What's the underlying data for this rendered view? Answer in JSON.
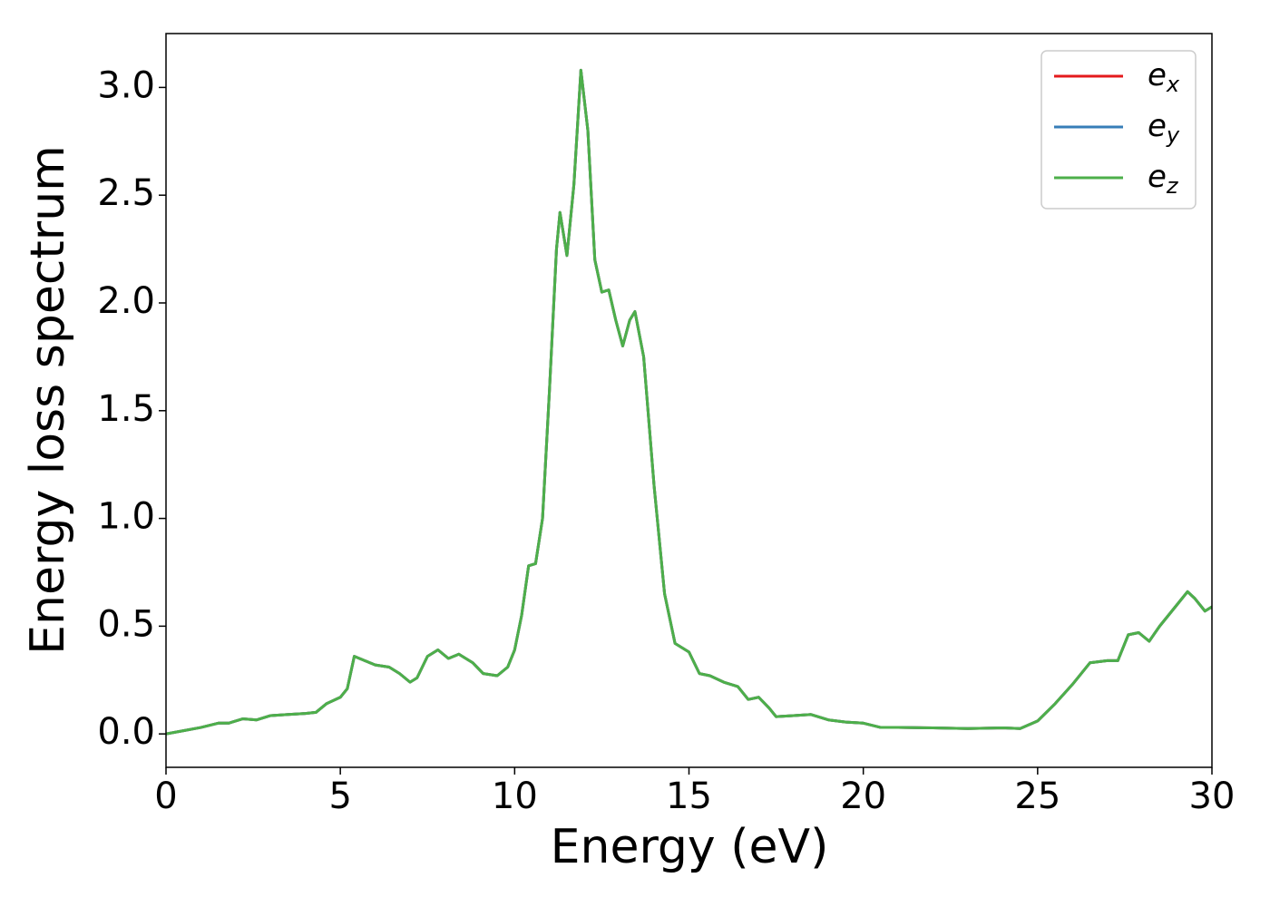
{
  "chart_data": {
    "type": "line",
    "xlabel": "Energy (eV)",
    "ylabel": "Energy loss spectrum",
    "x": [
      0,
      0.5,
      1,
      1.5,
      1.8,
      2.2,
      2.6,
      3,
      3.5,
      4,
      4.3,
      4.6,
      5,
      5.2,
      5.4,
      5.7,
      6,
      6.4,
      6.7,
      7,
      7.2,
      7.5,
      7.8,
      8.1,
      8.4,
      8.8,
      9.1,
      9.5,
      9.8,
      10,
      10.2,
      10.4,
      10.6,
      10.8,
      11,
      11.2,
      11.3,
      11.5,
      11.7,
      11.9,
      12.1,
      12.3,
      12.5,
      12.7,
      12.9,
      13.1,
      13.3,
      13.45,
      13.7,
      14,
      14.3,
      14.6,
      15,
      15.3,
      15.6,
      16,
      16.4,
      16.7,
      17,
      17.3,
      17.5,
      18,
      18.5,
      19,
      19.5,
      20,
      20.5,
      21,
      22,
      23,
      24,
      24.5,
      25,
      25.5,
      26,
      26.5,
      27,
      27.3,
      27.6,
      27.9,
      28.2,
      28.5,
      29,
      29.3,
      29.5,
      29.8,
      30
    ],
    "series": [
      {
        "name": "ex",
        "color": "#e41a1c",
        "values": [
          0,
          0.015,
          0.03,
          0.05,
          0.05,
          0.07,
          0.065,
          0.085,
          0.09,
          0.095,
          0.1,
          0.14,
          0.17,
          0.21,
          0.36,
          0.34,
          0.32,
          0.31,
          0.28,
          0.24,
          0.26,
          0.36,
          0.39,
          0.35,
          0.37,
          0.33,
          0.28,
          0.27,
          0.31,
          0.39,
          0.55,
          0.78,
          0.79,
          1.0,
          1.6,
          2.25,
          2.42,
          2.22,
          2.55,
          3.08,
          2.8,
          2.2,
          2.05,
          2.06,
          1.92,
          1.8,
          1.92,
          1.96,
          1.75,
          1.15,
          0.65,
          0.42,
          0.38,
          0.28,
          0.27,
          0.24,
          0.22,
          0.16,
          0.17,
          0.12,
          0.08,
          0.085,
          0.09,
          0.065,
          0.055,
          0.05,
          0.03,
          0.03,
          0.028,
          0.025,
          0.028,
          0.025,
          0.06,
          0.14,
          0.23,
          0.33,
          0.34,
          0.34,
          0.46,
          0.47,
          0.43,
          0.5,
          0.6,
          0.66,
          0.63,
          0.57,
          0.59
        ]
      },
      {
        "name": "ey",
        "color": "#377eb8",
        "values": [
          0,
          0.015,
          0.03,
          0.05,
          0.05,
          0.07,
          0.065,
          0.085,
          0.09,
          0.095,
          0.1,
          0.14,
          0.17,
          0.21,
          0.36,
          0.34,
          0.32,
          0.31,
          0.28,
          0.24,
          0.26,
          0.36,
          0.39,
          0.35,
          0.37,
          0.33,
          0.28,
          0.27,
          0.31,
          0.39,
          0.55,
          0.78,
          0.79,
          1.0,
          1.6,
          2.25,
          2.42,
          2.22,
          2.55,
          3.08,
          2.8,
          2.2,
          2.05,
          2.06,
          1.92,
          1.8,
          1.92,
          1.96,
          1.75,
          1.15,
          0.65,
          0.42,
          0.38,
          0.28,
          0.27,
          0.24,
          0.22,
          0.16,
          0.17,
          0.12,
          0.08,
          0.085,
          0.09,
          0.065,
          0.055,
          0.05,
          0.03,
          0.03,
          0.028,
          0.025,
          0.028,
          0.025,
          0.06,
          0.14,
          0.23,
          0.33,
          0.34,
          0.34,
          0.46,
          0.47,
          0.43,
          0.5,
          0.6,
          0.66,
          0.63,
          0.57,
          0.59
        ]
      },
      {
        "name": "ez",
        "color": "#4daf4a",
        "values": [
          0,
          0.015,
          0.03,
          0.05,
          0.05,
          0.07,
          0.065,
          0.085,
          0.09,
          0.095,
          0.1,
          0.14,
          0.17,
          0.21,
          0.36,
          0.34,
          0.32,
          0.31,
          0.28,
          0.24,
          0.26,
          0.36,
          0.39,
          0.35,
          0.37,
          0.33,
          0.28,
          0.27,
          0.31,
          0.39,
          0.55,
          0.78,
          0.79,
          1.0,
          1.6,
          2.25,
          2.42,
          2.22,
          2.55,
          3.08,
          2.8,
          2.2,
          2.05,
          2.06,
          1.92,
          1.8,
          1.92,
          1.96,
          1.75,
          1.15,
          0.65,
          0.42,
          0.38,
          0.28,
          0.27,
          0.24,
          0.22,
          0.16,
          0.17,
          0.12,
          0.08,
          0.085,
          0.09,
          0.065,
          0.055,
          0.05,
          0.03,
          0.03,
          0.028,
          0.025,
          0.028,
          0.025,
          0.06,
          0.14,
          0.23,
          0.33,
          0.34,
          0.34,
          0.46,
          0.47,
          0.43,
          0.5,
          0.6,
          0.66,
          0.63,
          0.57,
          0.59
        ]
      }
    ],
    "xlim": [
      0,
      30
    ],
    "xticks": [
      0,
      5,
      10,
      15,
      20,
      25,
      30
    ],
    "ylim": [
      -0.155,
      3.25
    ],
    "yticks": [
      {
        "value": 0,
        "label": "0.0"
      },
      0.5,
      {
        "value": 1,
        "label": "1.0"
      },
      1.5,
      {
        "value": 2,
        "label": "2.0"
      },
      2.5,
      {
        "value": 3,
        "label": "3.0"
      }
    ],
    "grid": false,
    "legend": "upper right"
  }
}
